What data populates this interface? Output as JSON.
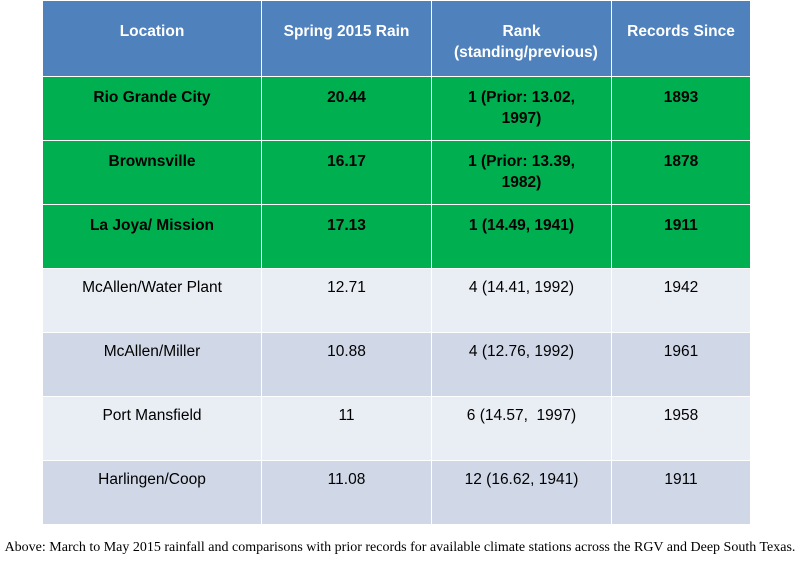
{
  "table": {
    "headers": {
      "location": "Location",
      "rain": "Spring 2015 Rain",
      "rank": "Rank (standing/previous)",
      "since": "Records Since"
    },
    "rows": [
      {
        "location": "Rio Grande City",
        "rain": "20.44",
        "rank": "1 (Prior: 13.02, 1997)",
        "since": "1893",
        "highlight": true
      },
      {
        "location": "Brownsville",
        "rain": "16.17",
        "rank": "1 (Prior: 13.39, 1982)",
        "since": "1878",
        "highlight": true
      },
      {
        "location": "La Joya/ Mission",
        "rain": "17.13",
        "rank": "1 (14.49, 1941)",
        "since": "1911",
        "highlight": true
      },
      {
        "location": "McAllen/Water Plant",
        "rain": "12.71",
        "rank": "4 (14.41, 1992)",
        "since": "1942",
        "highlight": false
      },
      {
        "location": "McAllen/Miller",
        "rain": "10.88",
        "rank": "4 (12.76, 1992)",
        "since": "1961",
        "highlight": false
      },
      {
        "location": "Port Mansfield",
        "rain": "11",
        "rank": "6 (14.57,  1997)",
        "since": "1958",
        "highlight": false
      },
      {
        "location": "Harlingen/Coop",
        "rain": "11.08",
        "rank": "12 (16.62, 1941)",
        "since": "1911",
        "highlight": false
      }
    ]
  },
  "caption": "Above:  March to May 2015 rainfall and comparisons with prior records for available climate stations across the RGV and Deep South Texas.",
  "colors": {
    "header": "#4f81bd",
    "highlight": "#00b050",
    "row_light": "#e9edf4",
    "row_dark": "#d0d8e8"
  }
}
